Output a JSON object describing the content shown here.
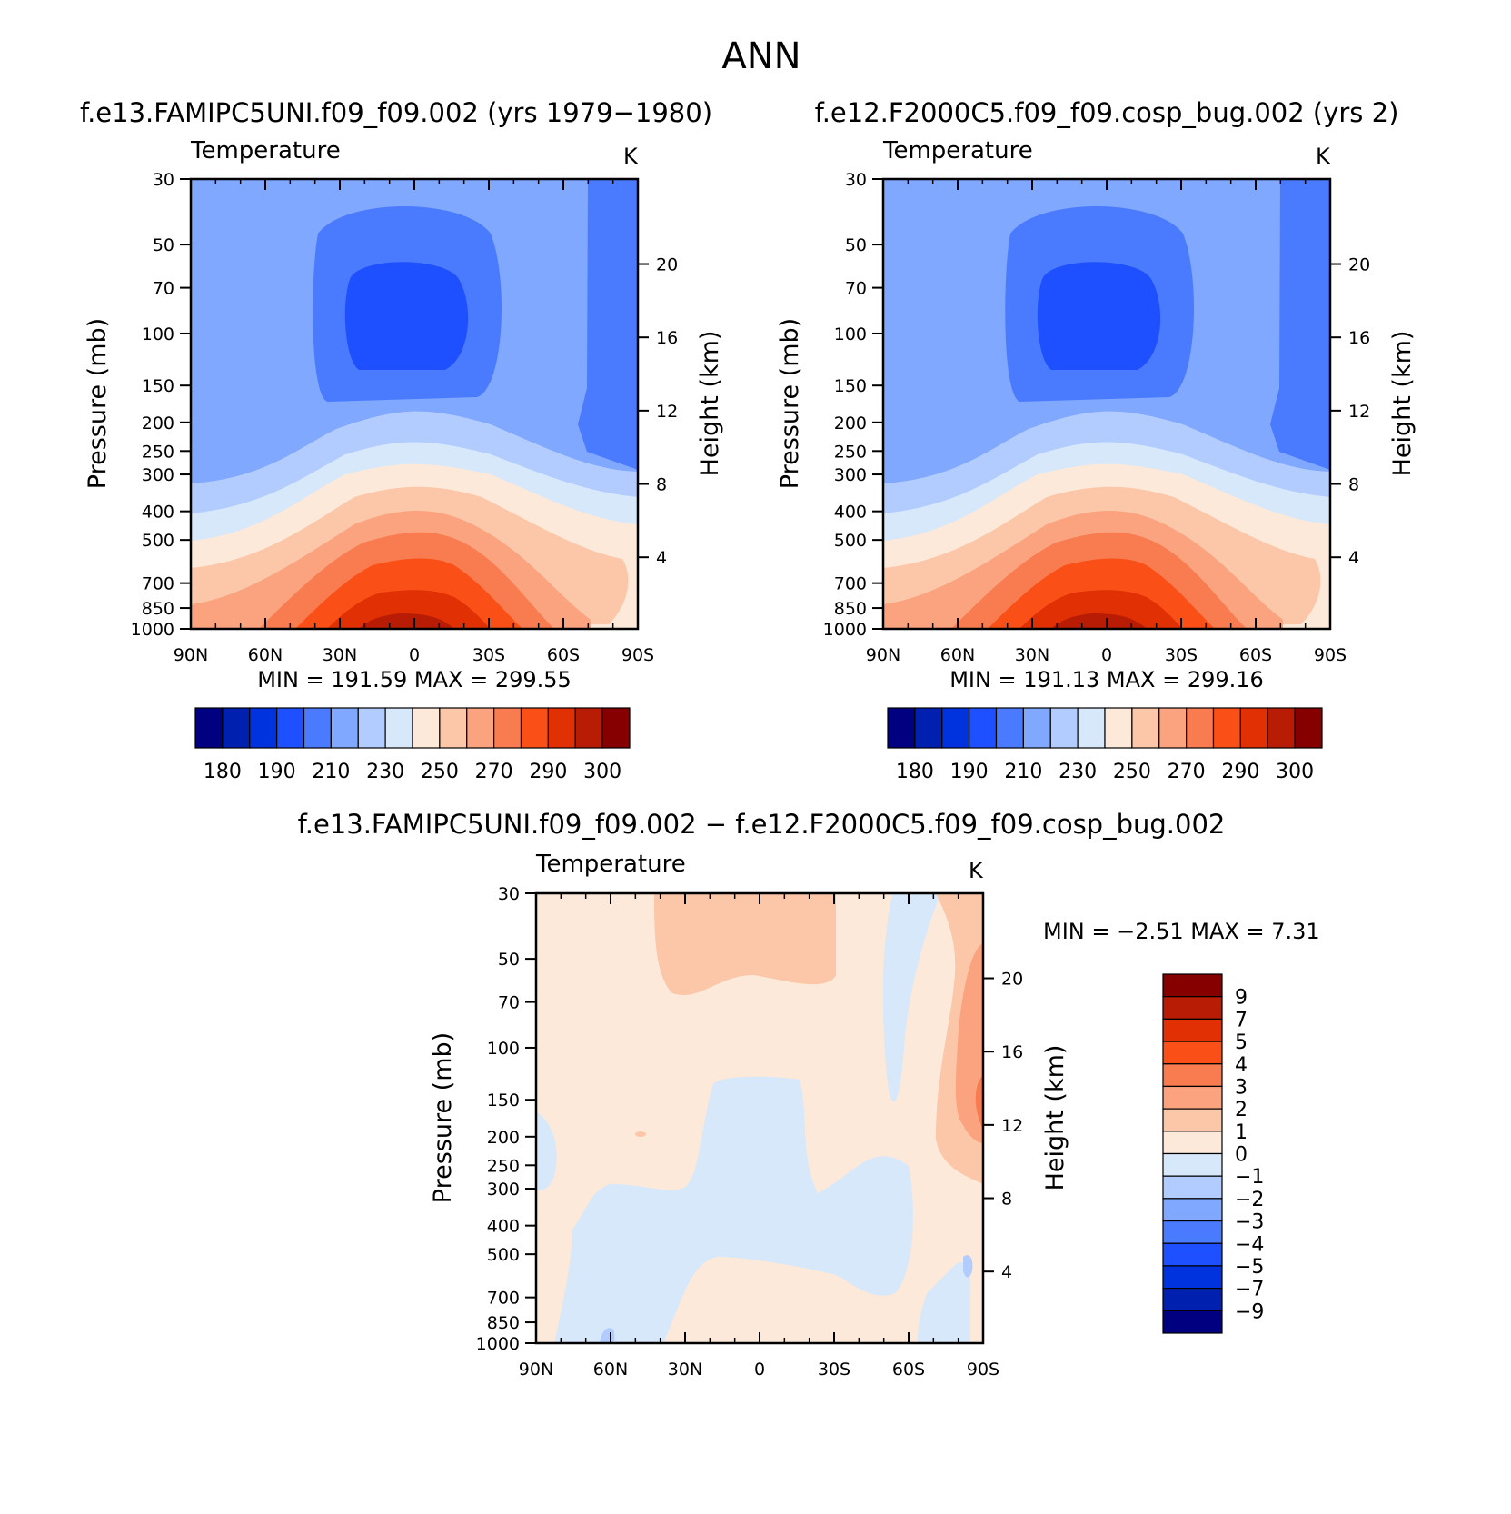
{
  "figure_title": "ANN",
  "panels": [
    {
      "title": "f.e13.FAMIPC5UNI.f09_f09.002 (yrs 1979−1980)",
      "variable": "Temperature",
      "units": "K",
      "stats": "MIN = 191.59 MAX = 299.55",
      "ylabel": "Pressure (mb)",
      "y2label": "Height (km)",
      "x_ticks": [
        "90N",
        "60N",
        "30N",
        "0",
        "30S",
        "60S",
        "90S"
      ],
      "p_ticks": [
        "30",
        "50",
        "70",
        "100",
        "150",
        "200",
        "250",
        "300",
        "400",
        "500",
        "700",
        "850",
        "1000"
      ],
      "h_ticks": [
        "20",
        "16",
        "12",
        "8",
        "4"
      ],
      "colorbar_labels": [
        "180",
        "190",
        "210",
        "230",
        "250",
        "270",
        "290",
        "300"
      ]
    },
    {
      "title": "f.e12.F2000C5.f09_f09.cosp_bug.002 (yrs 2)",
      "variable": "Temperature",
      "units": "K",
      "stats": "MIN = 191.13 MAX = 299.16",
      "ylabel": "Pressure (mb)",
      "y2label": "Height (km)",
      "x_ticks": [
        "90N",
        "60N",
        "30N",
        "0",
        "30S",
        "60S",
        "90S"
      ],
      "p_ticks": [
        "30",
        "50",
        "70",
        "100",
        "150",
        "200",
        "250",
        "300",
        "400",
        "500",
        "700",
        "850",
        "1000"
      ],
      "h_ticks": [
        "20",
        "16",
        "12",
        "8",
        "4"
      ],
      "colorbar_labels": [
        "180",
        "190",
        "210",
        "230",
        "250",
        "270",
        "290",
        "300"
      ]
    },
    {
      "title": "f.e13.FAMIPC5UNI.f09_f09.002 − f.e12.F2000C5.f09_f09.cosp_bug.002",
      "variable": "Temperature",
      "units": "K",
      "stats": "MIN = −2.51 MAX = 7.31",
      "ylabel": "Pressure (mb)",
      "y2label": "Height (km)",
      "x_ticks": [
        "90N",
        "60N",
        "30N",
        "0",
        "30S",
        "60S",
        "90S"
      ],
      "p_ticks": [
        "30",
        "50",
        "70",
        "100",
        "150",
        "200",
        "250",
        "300",
        "400",
        "500",
        "700",
        "850",
        "1000"
      ],
      "h_ticks": [
        "20",
        "16",
        "12",
        "8",
        "4"
      ],
      "colorbar_labels": [
        "9",
        "7",
        "5",
        "4",
        "3",
        "2",
        "1",
        "0",
        "−1",
        "−2",
        "−3",
        "−4",
        "−5",
        "−7",
        "−9"
      ]
    }
  ],
  "colors": {
    "abs_scale": [
      "#000080",
      "#0020b0",
      "#0033dd",
      "#1f50ff",
      "#4a7bff",
      "#80a8ff",
      "#b3ccff",
      "#d6e8fa",
      "#fde9d9",
      "#fcc6a8",
      "#faa37e",
      "#f87c50",
      "#fa5018",
      "#e03004",
      "#b81c04",
      "#860000"
    ],
    "diff_scale_top_to_bottom": [
      "#860000",
      "#b81c04",
      "#e03004",
      "#fa5018",
      "#f87c50",
      "#faa37e",
      "#fcc6a8",
      "#fde9d9",
      "#d6e8fa",
      "#b3ccff",
      "#80a8ff",
      "#4a7bff",
      "#1f50ff",
      "#0033dd",
      "#0020b0",
      "#000080"
    ]
  },
  "chart_data": [
    {
      "type": "heatmap",
      "title": "f.e13.FAMIPC5UNI.f09_f09.002 (yrs 1979−1980)",
      "xlabel": "",
      "ylabel": "Pressure (mb)",
      "y2label": "Height (km)",
      "x_categories": [
        "90N",
        "60N",
        "30N",
        "0",
        "30S",
        "60S",
        "90S"
      ],
      "y_axis": "log pressure, 30 to 1000 mb (inverted)",
      "contour_levels": [
        180,
        185,
        190,
        200,
        210,
        220,
        230,
        240,
        250,
        260,
        270,
        280,
        290,
        295,
        300
      ],
      "min": 191.59,
      "max": 299.55,
      "units": "K"
    },
    {
      "type": "heatmap",
      "title": "f.e12.F2000C5.f09_f09.cosp_bug.002 (yrs 2)",
      "xlabel": "",
      "ylabel": "Pressure (mb)",
      "y2label": "Height (km)",
      "x_categories": [
        "90N",
        "60N",
        "30N",
        "0",
        "30S",
        "60S",
        "90S"
      ],
      "y_axis": "log pressure, 30 to 1000 mb (inverted)",
      "contour_levels": [
        180,
        185,
        190,
        200,
        210,
        220,
        230,
        240,
        250,
        260,
        270,
        280,
        290,
        295,
        300
      ],
      "min": 191.13,
      "max": 299.16,
      "units": "K"
    },
    {
      "type": "heatmap",
      "title": "f.e13.FAMIPC5UNI.f09_f09.002 − f.e12.F2000C5.f09_f09.cosp_bug.002",
      "xlabel": "",
      "ylabel": "Pressure (mb)",
      "y2label": "Height (km)",
      "x_categories": [
        "90N",
        "60N",
        "30N",
        "0",
        "30S",
        "60S",
        "90S"
      ],
      "y_axis": "log pressure, 30 to 1000 mb (inverted)",
      "contour_levels": [
        -9,
        -7,
        -5,
        -4,
        -3,
        -2,
        -1,
        0,
        1,
        2,
        3,
        4,
        5,
        7,
        9
      ],
      "min": -2.51,
      "max": 7.31,
      "units": "K"
    }
  ]
}
